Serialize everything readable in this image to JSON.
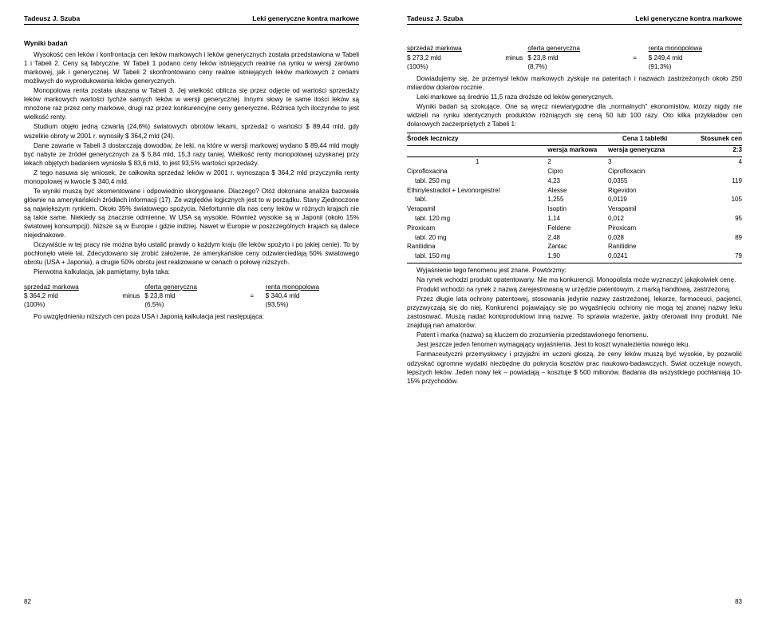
{
  "header": {
    "author": "Tadeusz J. Szuba",
    "title": "Leki generyczne kontra markowe"
  },
  "left": {
    "section_title": "Wyniki badań",
    "p1": "Wysokość cen leków i konfrontacja cen leków markowych i leków generycznych została przedstawiona w Tabeli 1 i Tabeli 2. Ceny są fabryczne. W Tabeli 1 podano ceny leków istniejących realnie na rynku w wersji zarówno markowej, jak i generycznej. W Tabeli 2 skonfrontowano ceny realnie istniejących leków markowych z cenami możliwych do wyprodukowania leków generycznych.",
    "p2": "Monopolowa renta została ukazana w Tabeli 3. Jej wielkość oblicza się przez odjęcie od wartości sprzedaży leków markowych wartości tychże samych leków w wersji generycznej. Innymi słowy te same ilości leków są mnożone raz przez ceny markowe, drugi raz przez konkurencyjne ceny generyczne. Różnica tych iloczynów to jest wielkość renty.",
    "p3": "Studium objęło jedną czwartą (24,6%) światowych obrotów lekami, sprzedaż o wartości $ 89,44 mld, gdy wszelkie obroty w 2001 r. wynosiły $ 364,2 mld (24).",
    "p4": "Dane zawarte w Tabeli 3 dostarczają dowodów, że leki, na które w wersji markowej wydano $ 89,44 mld mogły być nabyte ze źródeł generycznych za $ 5,84 mld, 15,3 razy taniej. Wielkość renty monopolowej uzyskanej przy lekach objętych badaniem wyniosła $ 83,6 mld, to jest 93,5% wartości sprzedaży.",
    "p5": "Z tego nasuwa się wniosek, że całkowita sprzedaż leków w 2001 r. wynosząca $ 364,2 mld przyczyniła renty monopolowej w kwocie $ 340,4 mld.",
    "p6": "Te wyniki muszą być skomentowane i odpowiednio skorygowane. Dlaczego? Otóż dokonana analiza bazowała głównie na amerykańskich źródłach informacji (17). Ze względów logicznych jest to w porządku. Stany Zjednoczone są największym rynkiem. Około 35% światowego spożycia. Niefortunnie dla nas ceny leków w różnych krajach nie są takie same. Niekiedy są znacznie odmienne. W USA są wysokie. Również wysokie są w Japonii (około 15% światowej konsumpcji). Niższe są w Europie i gdzie indziej. Nawet w Europie w poszczególnych krajach są dalece niejednakowe.",
    "p7": "Oczywiście w tej pracy nie można było ustalić prawdy o każdym kraju (ile leków spożyto i po jakiej cenie). To by pochłonęło wiele lat. Zdecydowano się zrobić założenie, że amerykańskie ceny odzwierciedlają 50% światowego obrotu (USA + Japonia), a drugie 50% obrotu jest realizowane w cenach o połowę niższych.",
    "p8": "Pierwotna kalkulacja, jak pamiętamy, była taka:",
    "calc1": {
      "h1": "sprzedaż markowa",
      "h2": "oferta generyczna",
      "h3": "renta monopolowa",
      "v1": "$ 364,2 mld",
      "op1": "minus",
      "v2": "$ 23,8 mld",
      "op2": "=",
      "v3": "$ 340,4 mld",
      "s1": "(100%)",
      "s2": "(6,5%)",
      "s3": "(93,5%)"
    },
    "p9": "Po uwzględnieniu niższych cen poza USA i Japonią kalkulacja jest następująca:",
    "page_num": "82"
  },
  "right": {
    "calc2": {
      "h1": "sprzedaż markowa",
      "h2": "oferta generyczna",
      "h3": "renta monopolowa",
      "v1": "$ 273,2 mld",
      "op1": "minus",
      "v2": "$ 23,8 mld",
      "op2": "=",
      "v3": "$ 249,4 mld",
      "s1": "(100%)",
      "s2": "(8,7%)",
      "s3": "(91,3%)"
    },
    "p1": "Dowiadujemy się, że przemysł leków markowych zyskuje na patentach i nazwach zastrzeżonych około 250 miliardów dolarów rocznie.",
    "p2": "Leki markowe są średnio 11,5 raza droższe od leków generycznych.",
    "p3": "Wyniki badań są szokujące. One są wręcz niewiarygodne dla „normalnych\" ekonomistów, którzy nigdy nie widzieli na rynku identycznych produktów różniących się ceną 50 lub 100 razy. Oto kilka przykładów cen dolarowych zaczerpniętych z Tabeli 1:",
    "table": {
      "h_drug": "Środek leczniczy",
      "h_price": "Cena 1 tabletki",
      "h_ratio": "Stosunek cen",
      "h_brand": "wersja markowa",
      "h_generic": "wersja generyczna",
      "h_ratio2": "2:3",
      "coln": {
        "c1": "1",
        "c2": "2",
        "c3": "3",
        "c4": "4"
      },
      "rows": [
        {
          "drug": "Ciprofloxacina",
          "brand": "Cipro",
          "generic": "Ciprofloxacin",
          "ratio": ""
        },
        {
          "drug": "tabl. 250 mg",
          "brand": "4,23",
          "generic": "0,0355",
          "ratio": "119",
          "pl": true
        },
        {
          "drug": "Ethinylestradiol + Levonorgestrel",
          "brand": "Alesse",
          "generic": "Rigevidon",
          "ratio": ""
        },
        {
          "drug": "tabl.",
          "brand": "1,255",
          "generic": "0,0119",
          "ratio": "105",
          "pl": true
        },
        {
          "drug": "Verapamil",
          "brand": "Isoptin",
          "generic": "Verapamil",
          "ratio": ""
        },
        {
          "drug": "tabl. 120 mg",
          "brand": "1,14",
          "generic": "0,012",
          "ratio": "95",
          "pl": true
        },
        {
          "drug": "Piroxicam",
          "brand": "Feldene",
          "generic": "Piroxicam",
          "ratio": ""
        },
        {
          "drug": "tabl. 20 mg",
          "brand": "2,48",
          "generic": "0,028",
          "ratio": "89",
          "pl": true
        },
        {
          "drug": "Ranitidina",
          "brand": "Zantac",
          "generic": "Ranitidine",
          "ratio": ""
        },
        {
          "drug": "tabl. 150 mg",
          "brand": "1,90",
          "generic": "0,0241",
          "ratio": "79",
          "pl": true
        }
      ]
    },
    "p4": "Wyjaśnienie tego fenomenu jest znane. Powtórzmy:",
    "p5": "Na rynek wchodzi produkt opatentowany. Nie ma konkurencji. Monopolista może wyznaczyć jakąkolwiek cenę.",
    "p6": "Produkt wchodzi na rynek z nazwą zarejestrowaną w urzędzie patentowym, z marką handlową, zastrzeżoną.",
    "p7": "Przez długie lata ochrony patentowej, stosowania jedynie nazwy zastrzeżonej, lekarze, farmaceuci, pacjenci, przyzwyczają się do niej. Konkurenci pojawiający się po wygaśnięciu ochrony nie mogą tej znanej nazwy leku zastosować. Muszą nadać kontrproduktowi inną nazwę. To sprawia wrażenie, jakby oferowali inny produkt. Nie znajdują nań amatorów.",
    "p8": "Patent i marka (nazwa) są kluczem do zrozumienia przedstawionego fenomenu.",
    "p9": "Jest jeszcze jeden fenomen wymagający wyjaśnienia. Jest to koszt wynalezienia nowego leku.",
    "p10": "Farmaceutyczni przemysłowcy i przyjaźni im uczeni głoszą, że ceny leków muszą być wysokie, by pozwolić odzyskać ogromne wydatki niezbędne do pokrycia kosztów prac naukowo-badawczych. Świat oczekuje nowych, lepszych leków. Jeden nowy lek – powiadają – kosztuje $ 500 milionów. Badania dla wszystkiego pochłaniają 10-15% przychodów.",
    "page_num": "83"
  }
}
